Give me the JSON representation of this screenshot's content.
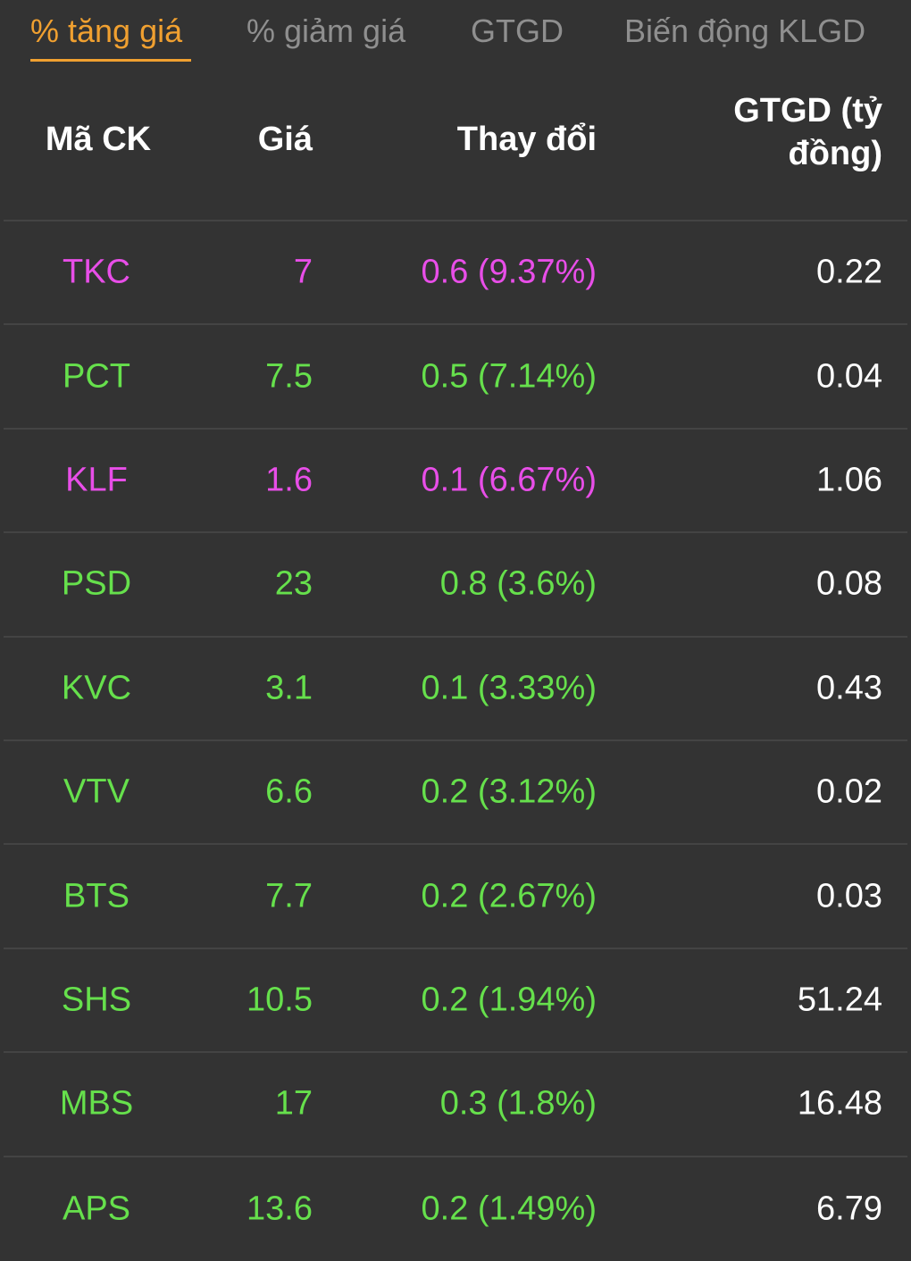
{
  "tabs": [
    {
      "label": "% tăng giá",
      "active": true
    },
    {
      "label": "% giảm giá",
      "active": false
    },
    {
      "label": "GTGD",
      "active": false
    },
    {
      "label": "Biến động KLGD",
      "active": false
    }
  ],
  "colors": {
    "ceiling": "#e84ee8",
    "up": "#66e04c",
    "active_tab": "#f0a030",
    "background": "#333333"
  },
  "table": {
    "headers": [
      "Mã CK",
      "Giá",
      "Thay đổi",
      "GTGD (tỷ đồng)"
    ],
    "rows": [
      {
        "symbol": "TKC",
        "price": "7",
        "change": "0.6 (9.37%)",
        "value": "0.22",
        "status": "ceiling"
      },
      {
        "symbol": "PCT",
        "price": "7.5",
        "change": "0.5 (7.14%)",
        "value": "0.04",
        "status": "up"
      },
      {
        "symbol": "KLF",
        "price": "1.6",
        "change": "0.1 (6.67%)",
        "value": "1.06",
        "status": "ceiling"
      },
      {
        "symbol": "PSD",
        "price": "23",
        "change": "0.8 (3.6%)",
        "value": "0.08",
        "status": "up"
      },
      {
        "symbol": "KVC",
        "price": "3.1",
        "change": "0.1 (3.33%)",
        "value": "0.43",
        "status": "up"
      },
      {
        "symbol": "VTV",
        "price": "6.6",
        "change": "0.2 (3.12%)",
        "value": "0.02",
        "status": "up"
      },
      {
        "symbol": "BTS",
        "price": "7.7",
        "change": "0.2 (2.67%)",
        "value": "0.03",
        "status": "up"
      },
      {
        "symbol": "SHS",
        "price": "10.5",
        "change": "0.2 (1.94%)",
        "value": "51.24",
        "status": "up"
      },
      {
        "symbol": "MBS",
        "price": "17",
        "change": "0.3 (1.8%)",
        "value": "16.48",
        "status": "up"
      },
      {
        "symbol": "APS",
        "price": "13.6",
        "change": "0.2 (1.49%)",
        "value": "6.79",
        "status": "up"
      }
    ]
  }
}
